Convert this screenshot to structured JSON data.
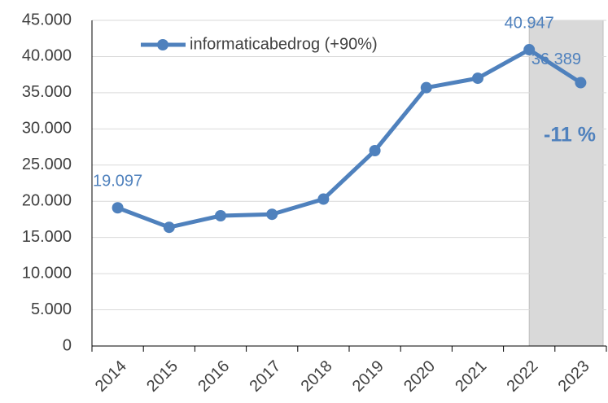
{
  "chart_data": {
    "type": "line",
    "categories": [
      "2014",
      "2015",
      "2016",
      "2017",
      "2018",
      "2019",
      "2020",
      "2021",
      "2022",
      "2023"
    ],
    "series": [
      {
        "name": "informaticabedrog (+90%)",
        "color": "#4f81bd",
        "values": [
          19097,
          16400,
          18000,
          18200,
          20300,
          27000,
          35700,
          37000,
          40947,
          36389
        ],
        "value_labels": [
          "19.097",
          null,
          null,
          null,
          null,
          null,
          null,
          null,
          "40.947",
          "36.389"
        ]
      }
    ],
    "ylim": [
      0,
      45000
    ],
    "yticks": [
      0,
      {
        "value": 5000,
        "label": "5.000"
      },
      {
        "value": 10000,
        "label": "10.000"
      },
      {
        "value": 15000,
        "label": "15.000"
      },
      {
        "value": 20000,
        "label": "20.000"
      },
      {
        "value": 25000,
        "label": "25.000"
      },
      {
        "value": 30000,
        "label": "30.000"
      },
      {
        "value": 35000,
        "label": "35.000"
      },
      {
        "value": 40000,
        "label": "40.000"
      },
      {
        "value": 45000,
        "label": "45.000"
      }
    ],
    "grid": true,
    "highlight": [
      "2022",
      "2023"
    ],
    "annotation": "-11 %"
  }
}
